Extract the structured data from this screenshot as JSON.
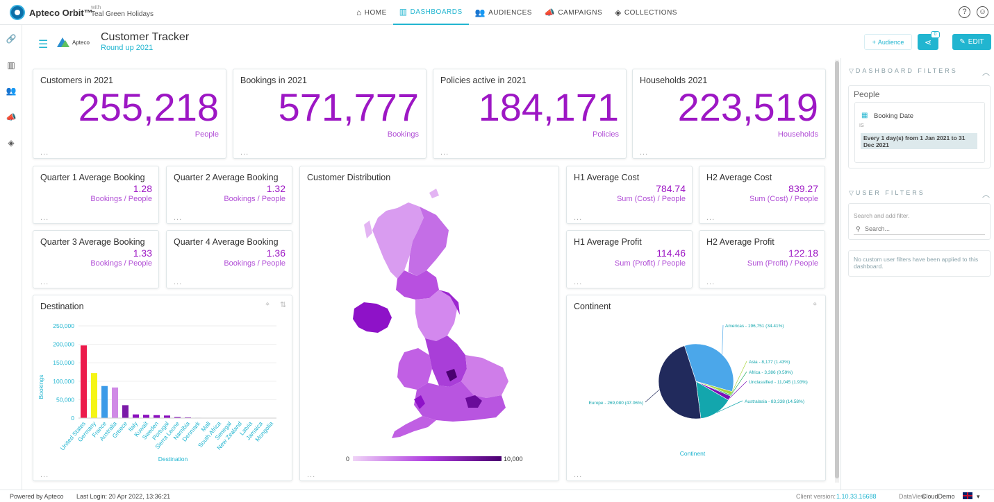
{
  "app": {
    "brand": "Apteco Orbit™",
    "with_label": "with",
    "client": "Teal Green Holidays"
  },
  "nav": {
    "items": [
      {
        "label": "HOME",
        "icon": "home-icon"
      },
      {
        "label": "DASHBOARDS",
        "icon": "dashboards-icon"
      },
      {
        "label": "AUDIENCES",
        "icon": "audiences-icon"
      },
      {
        "label": "CAMPAIGNS",
        "icon": "campaigns-icon"
      },
      {
        "label": "COLLECTIONS",
        "icon": "collections-icon"
      }
    ],
    "active": "DASHBOARDS"
  },
  "header": {
    "logo_text": "Apteco",
    "title": "Customer Tracker",
    "subtitle": "Round up 2021",
    "audience_button": "Audience",
    "share_count": "0",
    "edit_button": "EDIT"
  },
  "kpis": [
    {
      "title": "Customers in 2021",
      "value": "255,218",
      "unit": "People"
    },
    {
      "title": "Bookings in 2021",
      "value": "571,777",
      "unit": "Bookings"
    },
    {
      "title": "Policies active in 2021",
      "value": "184,171",
      "unit": "Policies"
    },
    {
      "title": "Households 2021",
      "value": "223,519",
      "unit": "Households"
    }
  ],
  "small_kpis": [
    {
      "title": "Quarter 1 Average Booking",
      "value": "1.28",
      "unit": "Bookings / People"
    },
    {
      "title": "Quarter 2 Average Booking",
      "value": "1.32",
      "unit": "Bookings / People"
    },
    {
      "title": "Quarter 3 Average Booking",
      "value": "1.33",
      "unit": "Bookings / People"
    },
    {
      "title": "Quarter 4 Average Booking",
      "value": "1.36",
      "unit": "Bookings / People"
    },
    {
      "title": "H1 Average Cost",
      "value": "784.74",
      "unit": "Sum (Cost) / People"
    },
    {
      "title": "H2 Average Cost",
      "value": "839.27",
      "unit": "Sum (Cost) / People"
    },
    {
      "title": "H1 Average Profit",
      "value": "114.46",
      "unit": "Sum (Profit) / People"
    },
    {
      "title": "H2 Average Profit",
      "value": "122.18",
      "unit": "Sum (Profit) / People"
    }
  ],
  "ellipsis": "...",
  "map_card": {
    "title": "Customer Distribution",
    "legend_min": "0",
    "legend_max": "10,000"
  },
  "destination_card": {
    "title": "Destination"
  },
  "continent_card": {
    "title": "Continent"
  },
  "chart_data": [
    {
      "type": "bar",
      "title": "Destination",
      "xlabel": "Destination",
      "ylabel": "Bookings",
      "ylim": [
        0,
        250000
      ],
      "yticks": [
        "0",
        "50,000",
        "100,000",
        "150,000",
        "200,000",
        "250,000"
      ],
      "categories": [
        "United States",
        "Germany",
        "France",
        "Australia",
        "Greece",
        "Italy",
        "Kuwait",
        "Sweden",
        "Portugal",
        "Sierra Leone",
        "Namibia",
        "Denmark",
        "Mali",
        "South Africa",
        "Senegal",
        "New Zealand",
        "Latvia",
        "Jamaica",
        "Mongolia"
      ],
      "values": [
        197000,
        122000,
        87000,
        83000,
        35000,
        10000,
        9000,
        8000,
        7000,
        3000,
        2000,
        1000,
        600,
        400,
        300,
        200,
        150,
        100,
        80
      ],
      "colors": [
        "#ec1b4b",
        "#f5f516",
        "#3c9be8",
        "#d08ae6",
        "#7b1aa8",
        "#8b0fbf",
        "#8b0fbf",
        "#8b0fbf",
        "#8b0fbf",
        "#8b0fbf",
        "#8b0fbf",
        "#8b0fbf",
        "#8b0fbf",
        "#8b0fbf",
        "#8b0fbf",
        "#8b0fbf",
        "#8b0fbf",
        "#8b0fbf",
        "#8b0fbf"
      ],
      "grid": true
    },
    {
      "type": "pie",
      "title": "Continent",
      "xlabel": "Continent",
      "slices": [
        {
          "label": "Americas - 196,751 (34.41%)",
          "value": 196751,
          "color": "#4ba7ea"
        },
        {
          "label": "Asia - 8,177 (1.43%)",
          "value": 8177,
          "color": "#a8d63b"
        },
        {
          "label": "Africa - 3,386 (0.59%)",
          "value": 3386,
          "color": "#2fb36a"
        },
        {
          "label": "Unclassified - 11,045 (1.93%)",
          "value": 11045,
          "color": "#7a10b8"
        },
        {
          "label": "Australasia - 83,338 (14.58%)",
          "value": 83338,
          "color": "#13a6ad"
        },
        {
          "label": "Europe - 269,080 (47.06%)",
          "value": 269080,
          "color": "#212a5c"
        }
      ]
    }
  ],
  "filters": {
    "dashboard_title": "DASHBOARD FILTERS",
    "people_label": "People",
    "booking_date": "Booking Date",
    "is_label": "IS",
    "chip_text": "Every 1 day(s) from 1 Jan 2021 to 31 Dec 2021",
    "user_title": "USER FILTERS",
    "search_hint": "Search and add filter.",
    "search_placeholder": "Search...",
    "no_filters": "No custom user filters have been applied to this dashboard."
  },
  "footer": {
    "powered": "Powered by Apteco",
    "last_login": "Last Login: 20 Apr 2022, 13:36:21",
    "client_version_label": "Client version:",
    "client_version": "1.10.33.16688",
    "dataview_label": "DataView",
    "dataview": "CloudDemo",
    "lang_chevron": "▾"
  },
  "colors": {
    "accent": "#21b5d0",
    "kpi_purple": "#9d17c4"
  }
}
